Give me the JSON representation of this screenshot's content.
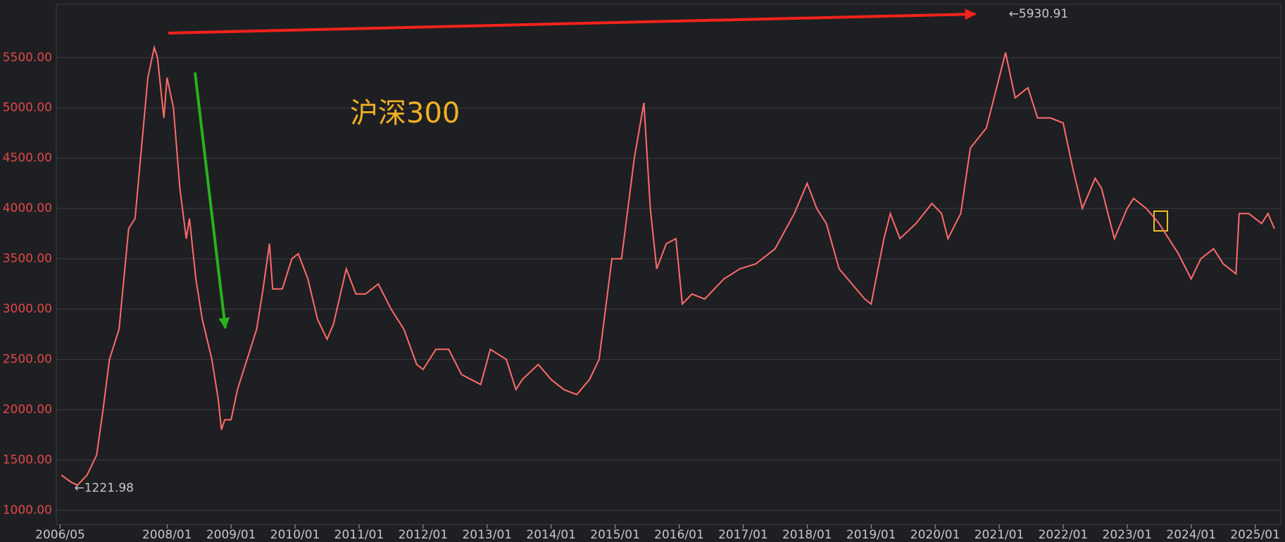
{
  "chart_data": {
    "type": "line",
    "title": "沪深300",
    "x": [
      2006.35,
      2006.5,
      2006.6,
      2006.75,
      2006.9,
      2007.0,
      2007.1,
      2007.25,
      2007.4,
      2007.5,
      2007.6,
      2007.7,
      2007.8,
      2007.85,
      2007.95,
      2008.0,
      2008.1,
      2008.2,
      2008.3,
      2008.35,
      2008.45,
      2008.55,
      2008.7,
      2008.8,
      2008.85,
      2008.9,
      2009.0,
      2009.1,
      2009.25,
      2009.4,
      2009.5,
      2009.6,
      2009.65,
      2009.8,
      2009.95,
      2010.05,
      2010.2,
      2010.35,
      2010.5,
      2010.6,
      2010.8,
      2010.95,
      2011.1,
      2011.3,
      2011.5,
      2011.7,
      2011.9,
      2012.0,
      2012.2,
      2012.4,
      2012.6,
      2012.9,
      2013.05,
      2013.3,
      2013.45,
      2013.55,
      2013.8,
      2014.0,
      2014.2,
      2014.4,
      2014.6,
      2014.75,
      2014.95,
      2015.1,
      2015.3,
      2015.45,
      2015.55,
      2015.65,
      2015.8,
      2015.95,
      2016.05,
      2016.2,
      2016.4,
      2016.7,
      2016.95,
      2017.2,
      2017.5,
      2017.8,
      2018.0,
      2018.15,
      2018.3,
      2018.5,
      2018.7,
      2018.9,
      2019.0,
      2019.2,
      2019.3,
      2019.45,
      2019.7,
      2019.95,
      2020.1,
      2020.2,
      2020.4,
      2020.55,
      2020.8,
      2021.0,
      2021.1,
      2021.25,
      2021.45,
      2021.6,
      2021.8,
      2022.0,
      2022.15,
      2022.3,
      2022.5,
      2022.6,
      2022.8,
      2023.0,
      2023.1,
      2023.3,
      2023.5,
      2023.6,
      2023.8,
      2024.0,
      2024.15,
      2024.35,
      2024.5,
      2024.7,
      2024.75,
      2024.9,
      2025.1,
      2025.2,
      2025.3
    ],
    "values": [
      1350,
      1280,
      1250,
      1350,
      1550,
      2000,
      2500,
      2800,
      3800,
      3900,
      4600,
      5300,
      5600,
      5500,
      4900,
      5300,
      5000,
      4200,
      3700,
      3900,
      3300,
      2900,
      2500,
      2100,
      1800,
      1900,
      1900,
      2200,
      2500,
      2800,
      3200,
      3650,
      3200,
      3200,
      3500,
      3550,
      3300,
      2900,
      2700,
      2850,
      3400,
      3150,
      3150,
      3250,
      3000,
      2800,
      2450,
      2400,
      2600,
      2600,
      2350,
      2250,
      2600,
      2500,
      2200,
      2300,
      2450,
      2300,
      2200,
      2150,
      2300,
      2500,
      3500,
      3500,
      4500,
      5050,
      4000,
      3400,
      3650,
      3700,
      3050,
      3150,
      3100,
      3300,
      3400,
      3450,
      3600,
      3950,
      4250,
      4000,
      3850,
      3400,
      3250,
      3100,
      3050,
      3700,
      3950,
      3700,
      3850,
      4050,
      3950,
      3700,
      3950,
      4600,
      4800,
      5300,
      5550,
      5100,
      5200,
      4900,
      4900,
      4850,
      4400,
      4000,
      4300,
      4200,
      3700,
      4000,
      4100,
      4000,
      3850,
      3750,
      3550,
      3300,
      3500,
      3600,
      3450,
      3350,
      3950,
      3950,
      3850,
      3950,
      3800
    ],
    "color": "#ff6b6b",
    "xlim": [
      2006.27,
      2025.4
    ],
    "xticks": [
      {
        "value": 2006.33,
        "label": "2006/05"
      },
      {
        "value": 2008,
        "label": "2008/01"
      },
      {
        "value": 2009,
        "label": "2009/01"
      },
      {
        "value": 2010,
        "label": "2010/01"
      },
      {
        "value": 2011,
        "label": "2011/01"
      },
      {
        "value": 2012,
        "label": "2012/01"
      },
      {
        "value": 2013,
        "label": "2013/01"
      },
      {
        "value": 2014,
        "label": "2014/01"
      },
      {
        "value": 2015,
        "label": "2015/01"
      },
      {
        "value": 2016,
        "label": "2016/01"
      },
      {
        "value": 2017,
        "label": "2017/01"
      },
      {
        "value": 2018,
        "label": "2018/01"
      },
      {
        "value": 2019,
        "label": "2019/01"
      },
      {
        "value": 2020,
        "label": "2020/01"
      },
      {
        "value": 2021,
        "label": "2021/01"
      },
      {
        "value": 2022,
        "label": "2022/01"
      },
      {
        "value": 2023,
        "label": "2023/01"
      },
      {
        "value": 2024,
        "label": "2024/01"
      },
      {
        "value": 2025,
        "label": "2025/01"
      }
    ],
    "ylim": [
      860,
      6030
    ],
    "yticks": [
      {
        "value": 1000,
        "label": "1000.00"
      },
      {
        "value": 1500,
        "label": "1500.00"
      },
      {
        "value": 2000,
        "label": "2000.00"
      },
      {
        "value": 2500,
        "label": "2500.00"
      },
      {
        "value": 3000,
        "label": "3000.00"
      },
      {
        "value": 3500,
        "label": "3500.00"
      },
      {
        "value": 4000,
        "label": "4000.00"
      },
      {
        "value": 4500,
        "label": "4500.00"
      },
      {
        "value": 5000,
        "label": "5000.00"
      },
      {
        "value": 5500,
        "label": "5500.00"
      }
    ],
    "grid": true,
    "annotations": [
      {
        "label": "←5930.91",
        "x": 2021.15,
        "value": 5930.91
      },
      {
        "label": "←1221.98",
        "x": 2006.55,
        "value": 1221.98
      }
    ]
  }
}
